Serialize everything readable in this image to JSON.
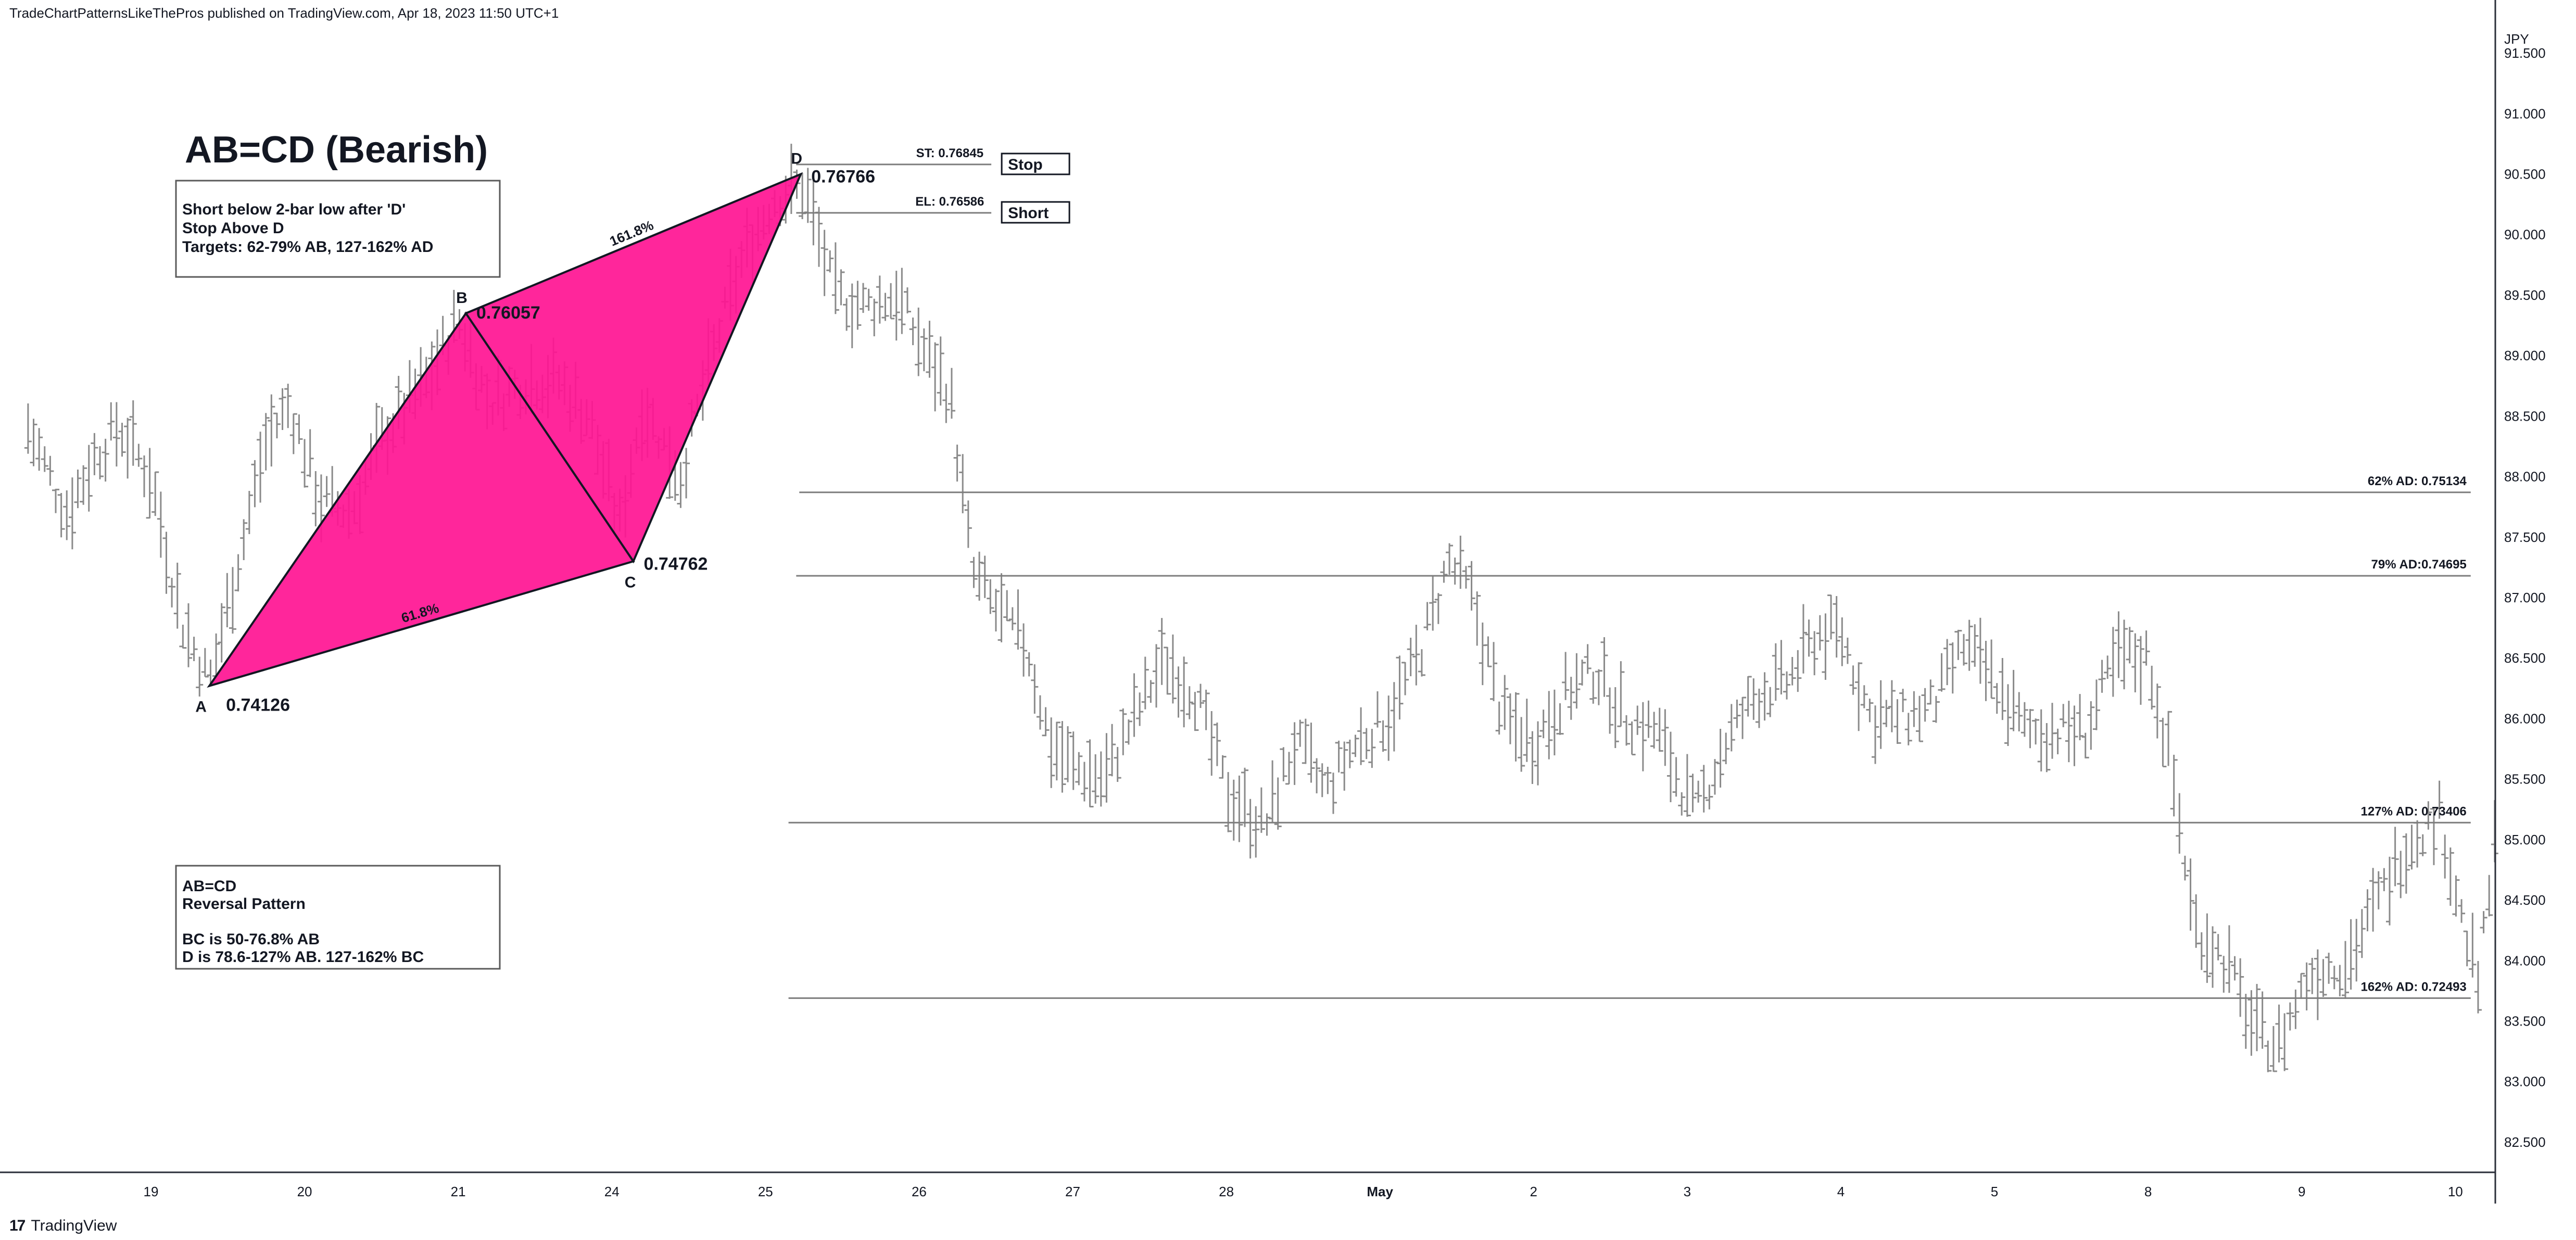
{
  "header": {
    "published": "TradeChartPatternsLikeThePros published on TradingView.com, Apr 18, 2023 11:50 UTC+1"
  },
  "footer": {
    "brand": "TradingView",
    "brand_mark": "17"
  },
  "colors": {
    "pattern_fill": "#ff1493",
    "bars": "#8a8a8a",
    "axis_text": "#131722",
    "lines": "#7d7d7d"
  },
  "chart_data": {
    "type": "bar",
    "currency": "JPY",
    "y_ticks": [
      "91.500",
      "91.000",
      "90.500",
      "90.000",
      "89.500",
      "89.000",
      "88.500",
      "88.000",
      "87.500",
      "87.000",
      "86.500",
      "86.000",
      "85.500",
      "85.000",
      "84.500",
      "84.000",
      "83.500",
      "83.000",
      "82.500"
    ],
    "ylim": [
      82.25,
      91.75
    ],
    "x_ticks": [
      {
        "label": "19",
        "x": 0
      },
      {
        "label": "20",
        "x": 1
      },
      {
        "label": "21",
        "x": 2
      },
      {
        "label": "24",
        "x": 3
      },
      {
        "label": "25",
        "x": 4
      },
      {
        "label": "26",
        "x": 5
      },
      {
        "label": "27",
        "x": 6
      },
      {
        "label": "28",
        "x": 7
      },
      {
        "label": "May",
        "x": 8
      },
      {
        "label": "2",
        "x": 9
      },
      {
        "label": "3",
        "x": 10
      },
      {
        "label": "4",
        "x": 11
      },
      {
        "label": "5",
        "x": 12
      },
      {
        "label": "8",
        "x": 13
      },
      {
        "label": "9",
        "x": 14
      },
      {
        "label": "10",
        "x": 15
      }
    ],
    "xlim": [
      -0.82,
      15.26
    ],
    "price_path": [
      [
        -0.8,
        88.4
      ],
      [
        -0.55,
        87.7
      ],
      [
        -0.35,
        88.2
      ],
      [
        -0.2,
        88.4
      ],
      [
        0.0,
        88.0
      ],
      [
        0.2,
        86.8
      ],
      [
        0.38,
        86.3
      ],
      [
        0.55,
        87.2
      ],
      [
        0.75,
        88.3
      ],
      [
        0.9,
        88.6
      ],
      [
        1.1,
        87.8
      ],
      [
        1.3,
        87.7
      ],
      [
        1.5,
        88.3
      ],
      [
        1.8,
        88.8
      ],
      [
        2.0,
        89.3
      ],
      [
        2.2,
        88.6
      ],
      [
        2.45,
        88.8
      ],
      [
        2.65,
        88.8
      ],
      [
        2.85,
        88.5
      ],
      [
        3.05,
        87.6
      ],
      [
        3.2,
        88.6
      ],
      [
        3.45,
        88.0
      ],
      [
        3.65,
        89.0
      ],
      [
        3.85,
        89.8
      ],
      [
        4.05,
        90.3
      ],
      [
        4.25,
        90.4
      ],
      [
        4.45,
        89.5
      ],
      [
        4.65,
        89.4
      ],
      [
        4.85,
        89.5
      ],
      [
        5.05,
        89.0
      ],
      [
        5.2,
        88.7
      ],
      [
        5.35,
        87.2
      ],
      [
        5.5,
        86.9
      ],
      [
        5.7,
        86.6
      ],
      [
        5.85,
        85.8
      ],
      [
        6.0,
        85.6
      ],
      [
        6.2,
        85.5
      ],
      [
        6.4,
        86.0
      ],
      [
        6.6,
        86.5
      ],
      [
        6.8,
        86.2
      ],
      [
        7.0,
        85.4
      ],
      [
        7.25,
        85.1
      ],
      [
        7.45,
        85.8
      ],
      [
        7.65,
        85.4
      ],
      [
        7.85,
        85.8
      ],
      [
        8.05,
        86.0
      ],
      [
        8.25,
        86.5
      ],
      [
        8.45,
        87.3
      ],
      [
        8.6,
        87.0
      ],
      [
        8.8,
        86.0
      ],
      [
        9.0,
        85.8
      ],
      [
        9.2,
        86.2
      ],
      [
        9.4,
        86.4
      ],
      [
        9.6,
        86.0
      ],
      [
        9.8,
        85.9
      ],
      [
        10.05,
        85.2
      ],
      [
        10.25,
        85.8
      ],
      [
        10.45,
        86.2
      ],
      [
        10.65,
        86.3
      ],
      [
        10.85,
        86.7
      ],
      [
        11.0,
        86.7
      ],
      [
        11.2,
        86.0
      ],
      [
        11.4,
        86.0
      ],
      [
        11.6,
        86.1
      ],
      [
        11.8,
        86.6
      ],
      [
        12.0,
        86.3
      ],
      [
        12.2,
        85.9
      ],
      [
        12.4,
        85.9
      ],
      [
        12.6,
        85.9
      ],
      [
        12.8,
        86.5
      ],
      [
        13.0,
        86.5
      ],
      [
        13.15,
        85.6
      ],
      [
        13.3,
        84.3
      ],
      [
        13.5,
        84.0
      ],
      [
        13.7,
        83.4
      ],
      [
        13.85,
        83.3
      ],
      [
        14.05,
        83.9
      ],
      [
        14.3,
        84.0
      ],
      [
        14.5,
        84.5
      ],
      [
        14.7,
        85.0
      ],
      [
        14.9,
        85.2
      ],
      [
        15.05,
        84.3
      ],
      [
        15.15,
        83.8
      ],
      [
        15.26,
        85.0
      ]
    ],
    "pattern": {
      "points": [
        {
          "name": "A",
          "x": 0.38,
          "y": 86.27,
          "value_label": "0.74126"
        },
        {
          "name": "B",
          "x": 2.05,
          "y": 89.35,
          "value_label": "0.76057"
        },
        {
          "name": "C",
          "x": 3.14,
          "y": 87.3,
          "value_label": "0.74762"
        },
        {
          "name": "D",
          "x": 4.23,
          "y": 90.5,
          "value_label": "0.76766"
        }
      ],
      "ratio_labels": [
        {
          "text": "61.8%",
          "segment": "AC"
        },
        {
          "text": "161.8%",
          "segment": "BD"
        }
      ]
    },
    "levels": [
      {
        "label": "ST: 0.76845",
        "y": 90.58,
        "x_start": 4.2,
        "x_end": 5.47,
        "tag": "Stop"
      },
      {
        "label": "EL: 0.76586",
        "y": 90.18,
        "x_start": 4.2,
        "x_end": 5.47,
        "tag": "Short"
      },
      {
        "label": "62% AD: 0.75134",
        "y": 87.87,
        "x_start": 4.22,
        "x_end": 15.1
      },
      {
        "label": "79% AD:0.74695",
        "y": 87.18,
        "x_start": 4.2,
        "x_end": 15.1
      },
      {
        "label": "127% AD: 0.73406",
        "y": 85.14,
        "x_start": 4.15,
        "x_end": 15.1
      },
      {
        "label": "162% AD: 0.72493",
        "y": 83.69,
        "x_start": 4.15,
        "x_end": 15.1
      }
    ],
    "title": "AB=CD (Bearish)",
    "note_trade": [
      "Short below 2-bar low after 'D'",
      "Stop Above D",
      "Targets: 62-79% AB, 127-162% AD"
    ],
    "note_pattern": [
      "AB=CD",
      "Reversal Pattern",
      "",
      "BC is 50-76.8% AB",
      "D is 78.6-127% AB. 127-162% BC"
    ]
  }
}
